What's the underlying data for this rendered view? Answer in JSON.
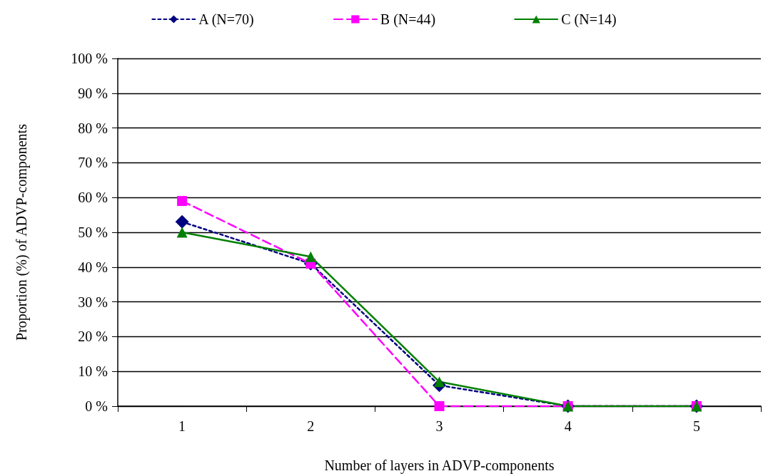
{
  "chart_data": {
    "type": "line",
    "xlabel": "Number of layers in ADVP-components",
    "ylabel": "Proportion (%) of ADVP-components",
    "categories": [
      "1",
      "2",
      "3",
      "4",
      "5"
    ],
    "series": [
      {
        "name": "A (N=70)",
        "color": "#000080",
        "values": [
          53,
          41,
          6,
          0,
          0
        ],
        "marker": "diamond",
        "line_style": "dotted"
      },
      {
        "name": "B (N=44)",
        "color": "#ff00ff",
        "values": [
          59,
          41,
          0,
          0,
          0
        ],
        "marker": "square",
        "line_style": "dashed"
      },
      {
        "name": "C (N=14)",
        "color": "#008000",
        "values": [
          50,
          43,
          7,
          0,
          0
        ],
        "marker": "triangle",
        "line_style": "solid"
      }
    ],
    "ylim": [
      0,
      100
    ],
    "yticks": [
      {
        "value": 0,
        "label": "0 %"
      },
      {
        "value": 10,
        "label": "10 %"
      },
      {
        "value": 20,
        "label": "20 %"
      },
      {
        "value": 30,
        "label": "30 %"
      },
      {
        "value": 40,
        "label": "40 %"
      },
      {
        "value": 50,
        "label": "50 %"
      },
      {
        "value": 60,
        "label": "60 %"
      },
      {
        "value": 70,
        "label": "70 %"
      },
      {
        "value": 80,
        "label": "80 %"
      },
      {
        "value": 90,
        "label": "90 %"
      },
      {
        "value": 100,
        "label": "100 %"
      }
    ],
    "grid": "y",
    "legend": "top"
  }
}
